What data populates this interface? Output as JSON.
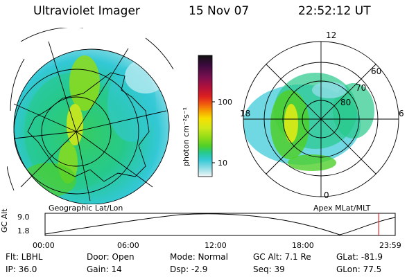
{
  "header": {
    "instrument": "Ultraviolet Imager",
    "date": "15 Nov 07",
    "time": "22:52:12 UT"
  },
  "colorbar": {
    "unit_label": "photon cm⁻²s⁻¹",
    "ticks": [
      "100",
      "10"
    ],
    "colors": [
      "#101010",
      "#3b0a3e",
      "#7a0f4f",
      "#b0103c",
      "#dd2020",
      "#f05a10",
      "#f6a000",
      "#f7df00",
      "#cfe81a",
      "#8fdc18",
      "#4ecf2a",
      "#26c98a",
      "#33c8d6",
      "#8fdde6",
      "#cbeff3",
      "#f3f6f7"
    ]
  },
  "left_map": {
    "caption": "Geographic Lat/Lon"
  },
  "right_map": {
    "caption": "Apex MLat/MLT",
    "lat_labels": [
      "60",
      "70",
      "80"
    ],
    "mlt_labels": {
      "top": "12",
      "right": "6",
      "bottom": "0",
      "left": "18"
    }
  },
  "timeline": {
    "axis_label": "GC Alt",
    "y_ticks": [
      "9.0",
      "1.8"
    ],
    "x_ticks": [
      "00:00",
      "06:00",
      "12:00",
      "18:00",
      "23:59"
    ],
    "current_marker_hour": 22.87,
    "marker_color": "#e02020"
  },
  "status": {
    "filter": "Flt: LBHL",
    "ip": "IP: 36.0",
    "door": "Door: Open",
    "gain": "Gain: 14",
    "mode": "Mode: Normal",
    "dsp": "Dsp:    -2.9",
    "gc_alt": "GC Alt: 7.1 Re",
    "seq": "Seq: 39",
    "glat": "GLat:  -81.9",
    "glon": "GLon:   77.5"
  }
}
